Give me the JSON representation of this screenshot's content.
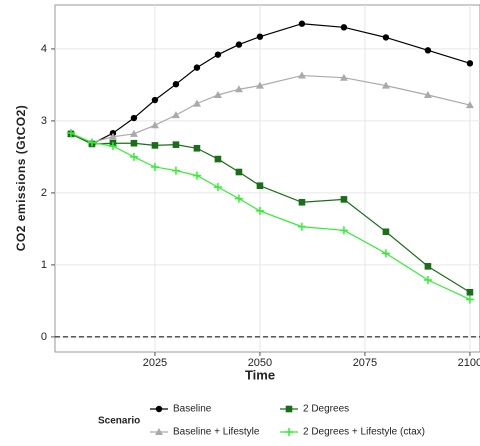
{
  "chart_data": {
    "type": "line",
    "x": [
      2005,
      2010,
      2015,
      2020,
      2025,
      2030,
      2035,
      2040,
      2045,
      2050,
      2060,
      2070,
      2080,
      2090,
      2100
    ],
    "series": [
      {
        "name": "Baseline",
        "color": "#000000",
        "marker": "circle",
        "values": [
          2.82,
          2.68,
          2.83,
          3.04,
          3.29,
          3.51,
          3.74,
          3.92,
          4.06,
          4.17,
          4.35,
          4.3,
          4.16,
          3.98,
          3.8
        ]
      },
      {
        "name": "Baseline + Lifestyle",
        "color": "#aaaaaa",
        "marker": "triangle",
        "values": [
          2.82,
          2.7,
          2.78,
          2.82,
          2.94,
          3.08,
          3.24,
          3.36,
          3.44,
          3.49,
          3.63,
          3.6,
          3.49,
          3.36,
          3.22
        ]
      },
      {
        "name": "2 Degrees",
        "color": "#1a6e1a",
        "marker": "square",
        "values": [
          2.82,
          2.68,
          2.69,
          2.69,
          2.66,
          2.67,
          2.62,
          2.47,
          2.29,
          2.1,
          1.87,
          1.91,
          1.46,
          0.98,
          0.62
        ]
      },
      {
        "name": "2 Degrees + Lifestyle (ctax)",
        "color": "#33ee33",
        "marker": "plus",
        "values": [
          2.83,
          2.7,
          2.65,
          2.5,
          2.36,
          2.31,
          2.24,
          2.08,
          1.92,
          1.75,
          1.53,
          1.48,
          1.16,
          0.79,
          0.52
        ]
      }
    ],
    "xlabel": "Time",
    "ylabel": "CO2 emissions (GtCO2)",
    "legend_title": "Scenario",
    "xlim": [
      2001.2,
      2102.4
    ],
    "xticks": [
      2025,
      2050,
      2075,
      2100
    ],
    "ylim": [
      -0.21,
      4.61
    ],
    "yticks": [
      0,
      1,
      2,
      3,
      4
    ],
    "hline": 0,
    "grid": true,
    "legend": "bottom"
  }
}
